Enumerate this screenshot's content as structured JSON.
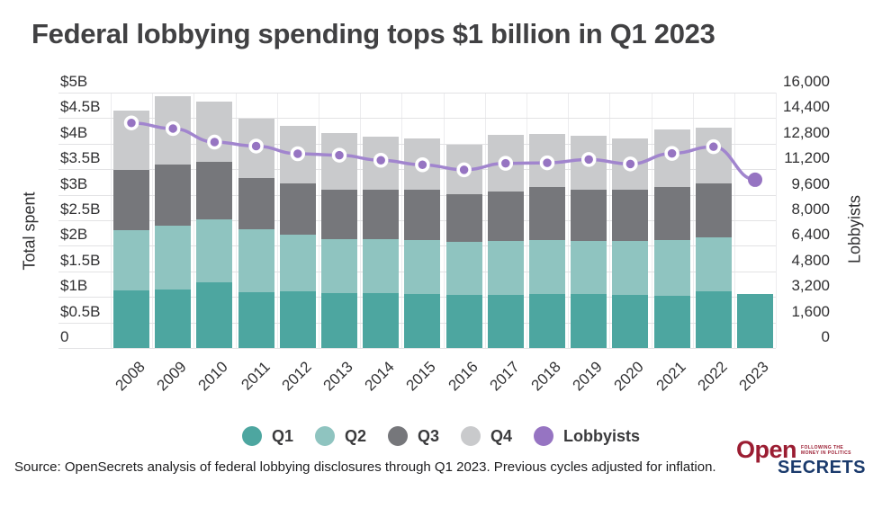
{
  "title": "Federal lobbying spending tops $1 billion in Q1 2023",
  "chart_data": {
    "type": "bar",
    "stacked": true,
    "title": "Federal lobbying spending tops $1 billion in Q1 2023",
    "unit": "billions USD (inflation adjusted)",
    "categories": [
      "2008",
      "2009",
      "2010",
      "2011",
      "2012",
      "2013",
      "2014",
      "2015",
      "2016",
      "2017",
      "2018",
      "2019",
      "2020",
      "2021",
      "2022",
      "2023"
    ],
    "series": [
      {
        "name": "Q1",
        "color": "#4da6a0",
        "values": [
          1.13,
          1.15,
          1.28,
          1.1,
          1.11,
          1.07,
          1.07,
          1.06,
          1.03,
          1.04,
          1.05,
          1.05,
          1.03,
          1.02,
          1.11,
          1.06
        ]
      },
      {
        "name": "Q2",
        "color": "#8fc4c0",
        "values": [
          1.18,
          1.24,
          1.23,
          1.22,
          1.11,
          1.06,
          1.06,
          1.06,
          1.04,
          1.05,
          1.07,
          1.05,
          1.06,
          1.1,
          1.05,
          0
        ]
      },
      {
        "name": "Q3",
        "color": "#76777b",
        "values": [
          1.17,
          1.2,
          1.13,
          1.0,
          1.01,
          0.97,
          0.97,
          0.97,
          0.94,
          0.97,
          1.03,
          1.0,
          1.0,
          1.03,
          1.06,
          0
        ]
      },
      {
        "name": "Q4",
        "color": "#c9cacc",
        "values": [
          1.16,
          1.34,
          1.19,
          1.17,
          1.12,
          1.11,
          1.04,
          1.02,
          0.97,
          1.11,
          1.04,
          1.05,
          1.01,
          1.12,
          1.09,
          0
        ]
      }
    ],
    "line_series": {
      "name": "Lobbyists",
      "line_color": "#a185ce",
      "marker_color": "#9674c2",
      "values": [
        14100,
        13750,
        12900,
        12650,
        12170,
        12080,
        11760,
        11480,
        11160,
        11570,
        11600,
        11810,
        11530,
        12190,
        12610,
        10540
      ]
    },
    "left_axis": {
      "label": "Total spent",
      "ticks": [
        "$5B",
        "$4.5B",
        "$4B",
        "$3.5B",
        "$3B",
        "$2.5B",
        "$2B",
        "$1.5B",
        "$1B",
        "$0.5B",
        "0"
      ],
      "ylim": [
        0,
        5
      ]
    },
    "right_axis": {
      "label": "Lobbyists",
      "ticks": [
        "16,000",
        "14,400",
        "12,800",
        "11,200",
        "9,600",
        "8,000",
        "6,400",
        "4,800",
        "3,200",
        "1,600",
        "0"
      ],
      "ylim": [
        0,
        16000
      ]
    },
    "legend": [
      {
        "label": "Q1",
        "color": "#4da6a0"
      },
      {
        "label": "Q2",
        "color": "#8fc4c0"
      },
      {
        "label": "Q3",
        "color": "#76777b"
      },
      {
        "label": "Q4",
        "color": "#c9cacc"
      },
      {
        "label": "Lobbyists",
        "color": "#9674c2"
      }
    ],
    "grid": "horizontal and vertical light gray",
    "legend_position": "bottom center"
  },
  "footer": {
    "source": "Source: OpenSecrets analysis of federal lobbying disclosures through Q1 2023. Previous cycles adjusted for inflation."
  },
  "logo": {
    "part1": "Open",
    "part2": "SECRETS",
    "tagline1": "FOLLOWING THE",
    "tagline2": "MONEY IN POLITICS"
  }
}
